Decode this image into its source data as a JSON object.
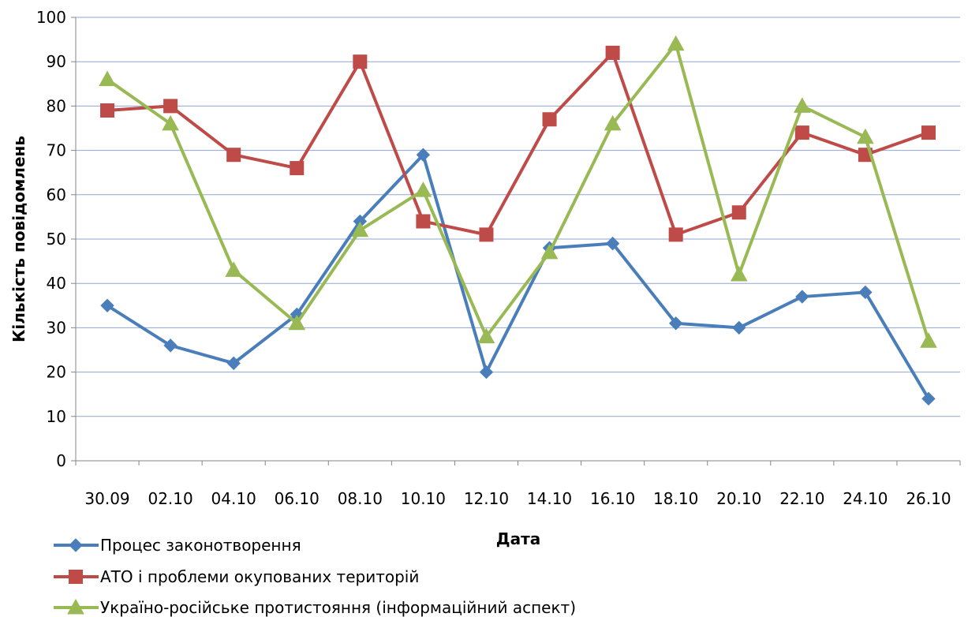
{
  "chart_data": {
    "type": "line",
    "title": "",
    "xlabel": "Дата",
    "ylabel": "Кількість повідомлень",
    "categories": [
      "30.09",
      "02.10",
      "04.10",
      "06.10",
      "08.10",
      "10.10",
      "12.10",
      "14.10",
      "16.10",
      "18.10",
      "20.10",
      "22.10",
      "24.10",
      "26.10"
    ],
    "ylim": [
      0,
      100
    ],
    "yticks": [
      0,
      10,
      20,
      30,
      40,
      50,
      60,
      70,
      80,
      90,
      100
    ],
    "grid": true,
    "legend_position": "bottom-left",
    "series": [
      {
        "name": "Процес законотворення",
        "color": "#4a7ebb",
        "marker": "diamond",
        "values": [
          35,
          26,
          22,
          33,
          54,
          69,
          20,
          48,
          49,
          31,
          30,
          37,
          38,
          14
        ]
      },
      {
        "name": "АТО і проблеми окупованих територій",
        "color": "#be4b48",
        "marker": "square",
        "values": [
          79,
          80,
          69,
          66,
          90,
          54,
          51,
          77,
          92,
          51,
          56,
          74,
          69,
          74
        ]
      },
      {
        "name": "Україно-російське протистояння (інформаційний аспект)",
        "color": "#98b954",
        "marker": "triangle",
        "values": [
          86,
          76,
          43,
          31,
          52,
          61,
          28,
          47,
          76,
          94,
          42,
          80,
          73,
          27
        ]
      }
    ]
  }
}
